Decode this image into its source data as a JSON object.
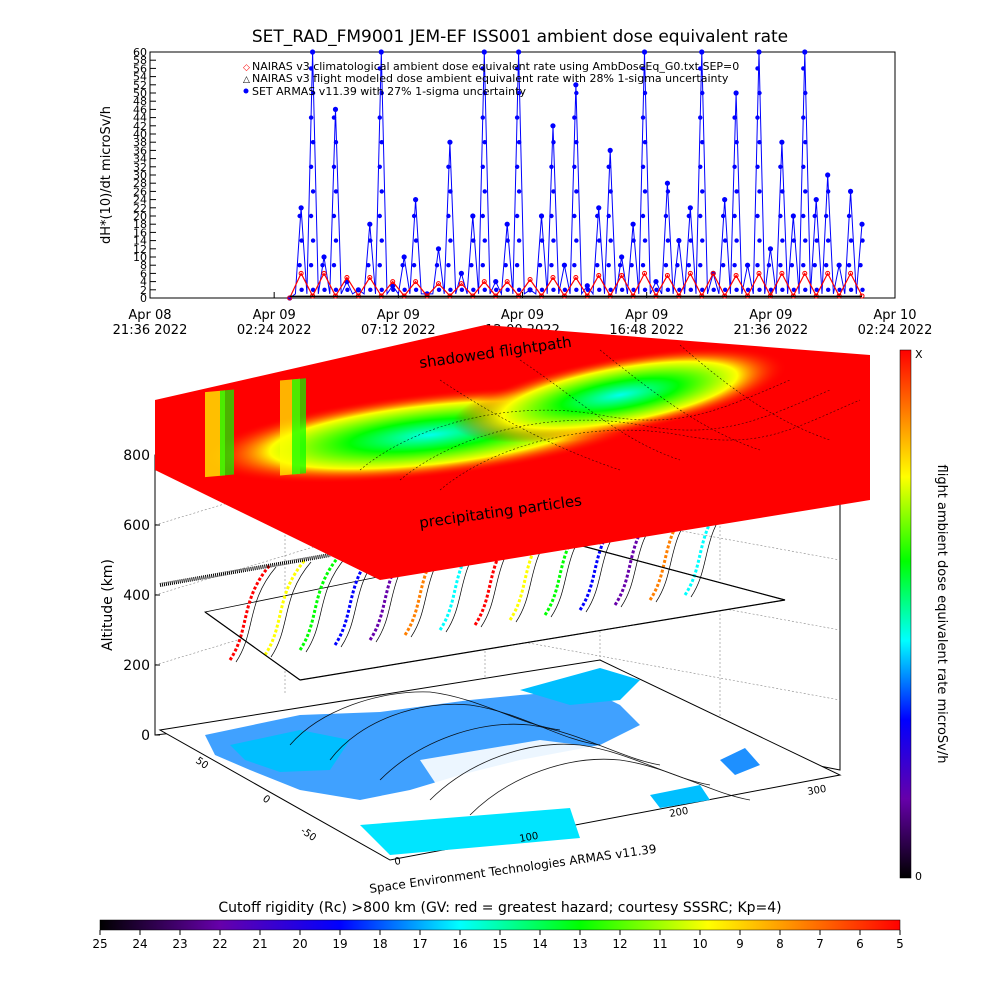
{
  "chart_data": [
    {
      "type": "line",
      "title": "SET_RAD_FM9001  JEM-EF ISS001 ambient dose equivalent rate",
      "ylabel": "dH*(10)/dt microSv/h",
      "ylim": [
        0,
        60
      ],
      "y_ticks": [
        "0",
        "2",
        "4",
        "6",
        "8",
        "10",
        "12",
        "14",
        "16",
        "18",
        "20",
        "22",
        "24",
        "26",
        "28",
        "30",
        "32",
        "34",
        "36",
        "38",
        "40",
        "42",
        "44",
        "46",
        "48",
        "50",
        "52",
        "54",
        "56",
        "58",
        "60"
      ],
      "x_ticks": [
        {
          "date": "Apr 08",
          "time": "21:36 2022"
        },
        {
          "date": "Apr 09",
          "time": "02:24 2022"
        },
        {
          "date": "Apr 09",
          "time": "07:12 2022"
        },
        {
          "date": "Apr 09",
          "time": "12:00 2022"
        },
        {
          "date": "Apr 09",
          "time": "16:48 2022"
        },
        {
          "date": "Apr 09",
          "time": "21:36 2022"
        },
        {
          "date": "Apr 10",
          "time": "02:24 2022"
        }
      ],
      "xlim": [
        "2022-04-08 21:36",
        "2022-04-10 02:24"
      ],
      "legend": [
        "NAIRAS v3 climatological ambient dose equivalent rate using AmbDoseEq_G0.txt SEP=0",
        "NAIRAS v3 flight modeled dose ambient equivalent rate with 28% 1-sigma uncertainty",
        "SET ARMAS v11.39 with 27% 1-sigma uncertainty"
      ],
      "legend_placement": "top-left",
      "series": [
        {
          "name": "SET ARMAS v11.39 with 27% 1-sigma uncertainty",
          "color": "#0000ff",
          "x_hours": [
            0,
            0.5,
            1,
            1.5,
            2,
            2.5,
            3,
            3.5,
            4,
            4.5,
            5,
            5.5,
            6,
            6.5,
            7,
            7.5,
            8,
            8.5,
            9,
            9.5,
            10,
            10.5,
            11,
            11.5,
            12,
            12.5,
            13,
            13.5,
            14,
            14.5,
            15,
            15.5,
            16,
            16.5,
            17,
            17.5,
            18,
            18.5,
            19,
            19.5,
            20,
            20.5,
            21,
            21.5,
            22,
            22.5,
            23,
            23.5,
            24,
            24.5,
            25
          ],
          "values": [
            0,
            22,
            60,
            10,
            46,
            4,
            2,
            18,
            60,
            3,
            10,
            24,
            1,
            12,
            38,
            6,
            20,
            60,
            4,
            18,
            60,
            2,
            20,
            42,
            8,
            52,
            3,
            22,
            36,
            10,
            18,
            60,
            4,
            28,
            14,
            22,
            60,
            6,
            24,
            50,
            8,
            60,
            12,
            38,
            20,
            60,
            24,
            30,
            8,
            26,
            18
          ]
        },
        {
          "name": "NAIRAS v3 climatological ambient dose equivalent rate using AmbDoseEq_G0.txt SEP=0",
          "color": "#ff0000",
          "x_hours": [
            0,
            0.5,
            1,
            1.5,
            2,
            2.5,
            3,
            3.5,
            4,
            4.5,
            5,
            5.5,
            6,
            6.5,
            7,
            7.5,
            8,
            8.5,
            9,
            9.5,
            10,
            10.5,
            11,
            11.5,
            12,
            12.5,
            13,
            13.5,
            14,
            14.5,
            15,
            15.5,
            16,
            16.5,
            17,
            17.5,
            18,
            18.5,
            19,
            19.5,
            20,
            20.5,
            21,
            21.5,
            22,
            22.5,
            23,
            23.5,
            24,
            24.5,
            25
          ],
          "values": [
            0,
            6,
            0.5,
            6,
            0.5,
            5,
            0.5,
            5,
            0.5,
            4,
            0.5,
            4,
            0.5,
            3.5,
            0.5,
            3.5,
            0.5,
            4,
            0.5,
            4,
            0.5,
            4.5,
            0.5,
            5,
            0.5,
            5,
            0.5,
            5.5,
            0.5,
            5.5,
            0.5,
            6,
            0.5,
            5.5,
            0.5,
            6,
            0.5,
            6,
            0.5,
            5.5,
            0.5,
            6,
            0.5,
            6,
            0.5,
            6,
            0.5,
            6,
            0.5,
            6,
            0.5
          ]
        }
      ]
    },
    {
      "type": "heatmap",
      "ylabel": "Altitude (km)",
      "z_ticks": [
        "0",
        "200",
        "400",
        "600",
        "800"
      ],
      "lat_ticks": [
        "50",
        "0",
        "-50"
      ],
      "lon_ticks": [
        "0",
        "100",
        "200",
        "300"
      ],
      "annotations": [
        "shadowed flightpath",
        "precipitating particles"
      ],
      "credit": "Space Environment Technologies ARMAS v11.39",
      "colorbar": {
        "label": "flight ambient dose equivalent rate microSv/h",
        "top_label": "X",
        "bottom_label": "0"
      },
      "rigidity_bar": {
        "title": "Cutoff rigidity (Rc) >800 km (GV: red = greatest hazard; courtesy SSSRC; Kp=4)",
        "ticks": [
          "25",
          "24",
          "23",
          "22",
          "21",
          "20",
          "19",
          "18",
          "17",
          "16",
          "15",
          "14",
          "13",
          "12",
          "11",
          "10",
          "9",
          "8",
          "7",
          "6",
          "5"
        ]
      }
    }
  ]
}
